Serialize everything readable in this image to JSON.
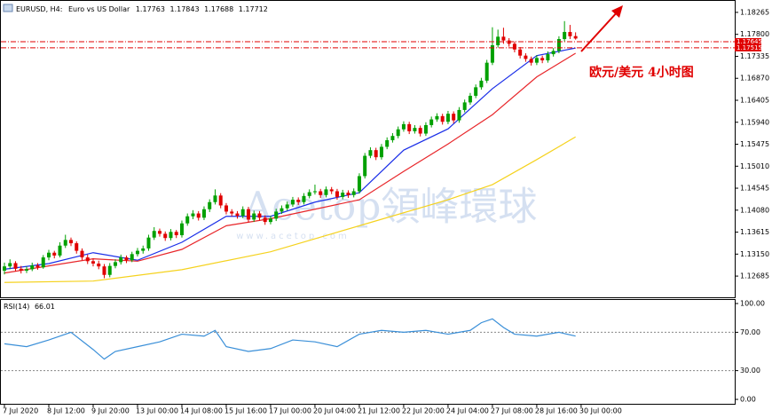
{
  "chart_data": [
    {
      "type": "candlestick",
      "title": "EURUSD, H4:",
      "subtitle": "Euro vs US Dollar",
      "annotation": "欧元/美元 4小时图",
      "up_color": "#00a000",
      "down_color": "#e00000",
      "xlim": [
        -0.8,
        131.7
      ],
      "ylim": [
        1.12236,
        1.18508
      ],
      "yticks": [
        {
          "value": 1.18265,
          "label": "1.18265"
        },
        {
          "value": 1.178,
          "label": "1.17800"
        },
        {
          "value": 1.17335,
          "label": "1.17335"
        },
        {
          "value": 1.1687,
          "label": "1.16870"
        },
        {
          "value": 1.16405,
          "label": "1.16405"
        },
        {
          "value": 1.1594,
          "label": "1.15940"
        },
        {
          "value": 1.15475,
          "label": "1.15475"
        },
        {
          "value": 1.1501,
          "label": "1.15010"
        },
        {
          "value": 1.14545,
          "label": "1.14545"
        },
        {
          "value": 1.1408,
          "label": "1.14080"
        },
        {
          "value": 1.13615,
          "label": "1.13615"
        },
        {
          "value": 1.1315,
          "label": "1.13150"
        },
        {
          "value": 1.12685,
          "label": "1.12685"
        }
      ],
      "price_lines": [
        {
          "value": 1.17645,
          "label": "1.17645"
        },
        {
          "value": 1.17515,
          "label": "1.17515"
        }
      ],
      "price_line_color": "#e00000",
      "candles": [
        [
          1.128,
          1.1297,
          1.1272,
          1.1289
        ],
        [
          1.1289,
          1.1304,
          1.1283,
          1.1296
        ],
        [
          1.1296,
          1.13,
          1.1279,
          1.1284
        ],
        [
          1.1284,
          1.129,
          1.1274,
          1.128
        ],
        [
          1.128,
          1.1289,
          1.1275,
          1.1283
        ],
        [
          1.1283,
          1.1297,
          1.1279,
          1.1291
        ],
        [
          1.1291,
          1.1296,
          1.1282,
          1.1287
        ],
        [
          1.1287,
          1.1313,
          1.1284,
          1.1308
        ],
        [
          1.1308,
          1.1324,
          1.1302,
          1.1318
        ],
        [
          1.1318,
          1.1322,
          1.1306,
          1.1312
        ],
        [
          1.1312,
          1.134,
          1.1308,
          1.1333
        ],
        [
          1.1333,
          1.1356,
          1.1328,
          1.1345
        ],
        [
          1.1345,
          1.135,
          1.1332,
          1.1338
        ],
        [
          1.1338,
          1.1342,
          1.1316,
          1.1322
        ],
        [
          1.1322,
          1.1327,
          1.1302,
          1.1308
        ],
        [
          1.1308,
          1.1314,
          1.1294,
          1.13
        ],
        [
          1.13,
          1.1306,
          1.1289,
          1.1295
        ],
        [
          1.1295,
          1.1301,
          1.1283,
          1.1289
        ],
        [
          1.1289,
          1.1294,
          1.1264,
          1.1271
        ],
        [
          1.1271,
          1.1296,
          1.1266,
          1.129
        ],
        [
          1.129,
          1.1304,
          1.1285,
          1.1298
        ],
        [
          1.1298,
          1.1314,
          1.1293,
          1.1308
        ],
        [
          1.1308,
          1.1312,
          1.1296,
          1.1302
        ],
        [
          1.1302,
          1.132,
          1.1298,
          1.1315
        ],
        [
          1.1315,
          1.1328,
          1.131,
          1.1322
        ],
        [
          1.1322,
          1.1333,
          1.1316,
          1.1327
        ],
        [
          1.1327,
          1.1356,
          1.1322,
          1.135
        ],
        [
          1.135,
          1.1372,
          1.1345,
          1.1364
        ],
        [
          1.1364,
          1.1369,
          1.1352,
          1.1358
        ],
        [
          1.1358,
          1.1363,
          1.1343,
          1.1349
        ],
        [
          1.1349,
          1.1368,
          1.1344,
          1.1362
        ],
        [
          1.1362,
          1.1366,
          1.1349,
          1.1355
        ],
        [
          1.1355,
          1.1386,
          1.135,
          1.138
        ],
        [
          1.138,
          1.1401,
          1.1375,
          1.1395
        ],
        [
          1.1395,
          1.1408,
          1.1389,
          1.1401
        ],
        [
          1.1401,
          1.1406,
          1.1386,
          1.1392
        ],
        [
          1.1392,
          1.1416,
          1.1387,
          1.141
        ],
        [
          1.141,
          1.1431,
          1.1404,
          1.1425
        ],
        [
          1.1425,
          1.1452,
          1.142,
          1.1439
        ],
        [
          1.1439,
          1.1444,
          1.1412,
          1.1418
        ],
        [
          1.1418,
          1.1423,
          1.1399,
          1.1405
        ],
        [
          1.1405,
          1.141,
          1.1395,
          1.1401
        ],
        [
          1.1401,
          1.1406,
          1.139,
          1.1396
        ],
        [
          1.1396,
          1.1416,
          1.1391,
          1.141
        ],
        [
          1.141,
          1.1415,
          1.1382,
          1.1388
        ],
        [
          1.1388,
          1.1407,
          1.1383,
          1.1401
        ],
        [
          1.1401,
          1.1406,
          1.1386,
          1.1392
        ],
        [
          1.1392,
          1.1397,
          1.1377,
          1.1383
        ],
        [
          1.1383,
          1.1396,
          1.1378,
          1.139
        ],
        [
          1.139,
          1.1411,
          1.1385,
          1.1405
        ],
        [
          1.1405,
          1.1418,
          1.14,
          1.1412
        ],
        [
          1.1412,
          1.1426,
          1.1407,
          1.142
        ],
        [
          1.142,
          1.1436,
          1.1415,
          1.143
        ],
        [
          1.143,
          1.1435,
          1.1419,
          1.1425
        ],
        [
          1.1425,
          1.1444,
          1.142,
          1.1438
        ],
        [
          1.1438,
          1.1452,
          1.1433,
          1.1446
        ],
        [
          1.1446,
          1.1462,
          1.1441,
          1.1448
        ],
        [
          1.1448,
          1.1453,
          1.1434,
          1.144
        ],
        [
          1.144,
          1.1458,
          1.1435,
          1.1452
        ],
        [
          1.1452,
          1.1457,
          1.1442,
          1.1448
        ],
        [
          1.1448,
          1.1453,
          1.143,
          1.1436
        ],
        [
          1.1436,
          1.1451,
          1.1431,
          1.1445
        ],
        [
          1.1445,
          1.145,
          1.1434,
          1.144
        ],
        [
          1.144,
          1.1454,
          1.1435,
          1.1448
        ],
        [
          1.1448,
          1.1486,
          1.1443,
          1.148
        ],
        [
          1.148,
          1.1529,
          1.1475,
          1.1523
        ],
        [
          1.1523,
          1.1541,
          1.1518,
          1.1535
        ],
        [
          1.1535,
          1.154,
          1.1514,
          1.152
        ],
        [
          1.152,
          1.1548,
          1.1515,
          1.1542
        ],
        [
          1.1542,
          1.1562,
          1.1537,
          1.1556
        ],
        [
          1.1556,
          1.1571,
          1.1551,
          1.1565
        ],
        [
          1.1565,
          1.1585,
          1.156,
          1.1579
        ],
        [
          1.1579,
          1.1596,
          1.1574,
          1.159
        ],
        [
          1.159,
          1.1595,
          1.1569,
          1.1575
        ],
        [
          1.1575,
          1.1588,
          1.157,
          1.1582
        ],
        [
          1.1582,
          1.1587,
          1.1564,
          1.157
        ],
        [
          1.157,
          1.1594,
          1.1565,
          1.1588
        ],
        [
          1.1588,
          1.1606,
          1.1583,
          1.16
        ],
        [
          1.16,
          1.1613,
          1.1595,
          1.1607
        ],
        [
          1.1607,
          1.1612,
          1.1589,
          1.1595
        ],
        [
          1.1595,
          1.1618,
          1.159,
          1.1612
        ],
        [
          1.1612,
          1.1617,
          1.1592,
          1.1598
        ],
        [
          1.1598,
          1.1626,
          1.1593,
          1.162
        ],
        [
          1.162,
          1.1642,
          1.1615,
          1.1636
        ],
        [
          1.1636,
          1.1656,
          1.1631,
          1.165
        ],
        [
          1.165,
          1.1674,
          1.1645,
          1.1668
        ],
        [
          1.1668,
          1.1688,
          1.1663,
          1.1682
        ],
        [
          1.1682,
          1.1726,
          1.1677,
          1.172
        ],
        [
          1.172,
          1.1795,
          1.1715,
          1.1757
        ],
        [
          1.1757,
          1.179,
          1.1752,
          1.1775
        ],
        [
          1.1775,
          1.1794,
          1.176,
          1.1767
        ],
        [
          1.1767,
          1.1772,
          1.1754,
          1.176
        ],
        [
          1.176,
          1.1765,
          1.1742,
          1.1748
        ],
        [
          1.1748,
          1.1753,
          1.1729,
          1.1735
        ],
        [
          1.1735,
          1.174,
          1.1722,
          1.1728
        ],
        [
          1.1728,
          1.1733,
          1.1714,
          1.172
        ],
        [
          1.172,
          1.1736,
          1.1715,
          1.173
        ],
        [
          1.173,
          1.1735,
          1.1719,
          1.1725
        ],
        [
          1.1725,
          1.1744,
          1.172,
          1.1738
        ],
        [
          1.1738,
          1.1751,
          1.1733,
          1.1745
        ],
        [
          1.1745,
          1.1776,
          1.174,
          1.177
        ],
        [
          1.177,
          1.1808,
          1.1765,
          1.1785
        ],
        [
          1.1785,
          1.18,
          1.177,
          1.1776
        ],
        [
          1.17763,
          1.17843,
          1.17688,
          1.17712
        ]
      ],
      "series": [
        {
          "color": "#1a2ee8",
          "x": [
            0,
            8,
            16,
            24,
            32,
            40,
            48,
            56,
            64,
            72,
            80,
            88,
            96,
            103
          ],
          "values": [
            1.1283,
            1.1295,
            1.1318,
            1.1302,
            1.134,
            1.1395,
            1.1395,
            1.1425,
            1.1445,
            1.1535,
            1.158,
            1.1665,
            1.1735,
            1.1751
          ]
        },
        {
          "color": "#e8262a",
          "x": [
            0,
            8,
            16,
            24,
            32,
            40,
            48,
            56,
            64,
            72,
            80,
            88,
            96,
            103
          ],
          "values": [
            1.1275,
            1.129,
            1.1305,
            1.13,
            1.1325,
            1.1375,
            1.139,
            1.141,
            1.143,
            1.149,
            1.1548,
            1.161,
            1.169,
            1.174
          ]
        },
        {
          "color": "#f5d21e",
          "x": [
            0,
            16,
            32,
            48,
            64,
            80,
            88,
            96,
            103
          ],
          "values": [
            1.1255,
            1.1258,
            1.1282,
            1.132,
            1.1375,
            1.143,
            1.1462,
            1.1515,
            1.1563
          ]
        }
      ]
    },
    {
      "type": "line",
      "title": "RSI(14)",
      "xlim": [
        -0.8,
        131.7
      ],
      "ylim": [
        -4.6,
        103.7
      ],
      "yticks": [
        {
          "value": 100,
          "label": "100.00"
        },
        {
          "value": 70,
          "label": "70.00"
        },
        {
          "value": 30,
          "label": "30.00"
        },
        {
          "value": 0,
          "label": "0.00"
        }
      ],
      "xticks": [
        {
          "value": 0,
          "label": "7 Jul 2020"
        },
        {
          "value": 8,
          "label": "8 Jul 12:00"
        },
        {
          "value": 16,
          "label": "9 Jul 20:00"
        },
        {
          "value": 24,
          "label": "13 Jul 00:00"
        },
        {
          "value": 32,
          "label": "14 Jul 08:00"
        },
        {
          "value": 40,
          "label": "15 Jul 16:00"
        },
        {
          "value": 48,
          "label": "17 Jul 00:00"
        },
        {
          "value": 56,
          "label": "20 Jul 04:00"
        },
        {
          "value": 64,
          "label": "21 Jul 12:00"
        },
        {
          "value": 72,
          "label": "22 Jul 20:00"
        },
        {
          "value": 80,
          "label": "24 Jul 04:00"
        },
        {
          "value": 88,
          "label": "27 Jul 08:00"
        },
        {
          "value": 96,
          "label": "28 Jul 16:00"
        },
        {
          "value": 104,
          "label": "30 Jul 00:00"
        }
      ],
      "series": [
        {
          "color": "#3a8fd8",
          "x": [
            0,
            4,
            8,
            12,
            16,
            18,
            20,
            24,
            28,
            32,
            36,
            38,
            40,
            44,
            48,
            52,
            56,
            60,
            64,
            68,
            72,
            76,
            80,
            84,
            86,
            88,
            90,
            92,
            96,
            100,
            103
          ],
          "values": [
            58,
            55,
            62,
            70,
            52,
            42,
            50,
            55,
            60,
            68,
            66,
            72,
            55,
            50,
            53,
            62,
            60,
            55,
            68,
            72,
            70,
            72,
            68,
            72,
            80,
            84,
            75,
            68,
            66,
            70,
            66.01
          ]
        }
      ]
    }
  ],
  "watermark": {
    "brand": "Acetop領峰環球",
    "url": "www.acetop.com"
  }
}
